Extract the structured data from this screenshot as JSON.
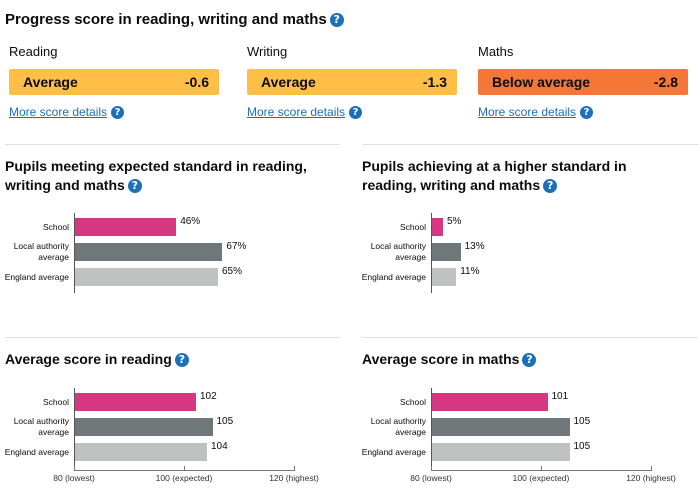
{
  "progress": {
    "title": "Progress score in reading, writing and maths",
    "help_icon": "question-circle-icon",
    "items": [
      {
        "subject": "Reading",
        "band": "Average",
        "score": "-0.6",
        "color": "#ffbf47",
        "link": "More score details"
      },
      {
        "subject": "Writing",
        "band": "Average",
        "score": "-1.3",
        "color": "#ffbf47",
        "link": "More score details"
      },
      {
        "subject": "Maths",
        "band": "Below average",
        "score": "-2.8",
        "color": "#f47738",
        "link": "More score details"
      }
    ]
  },
  "colors": {
    "school": "#d53880",
    "local_authority": "#6f777b",
    "england": "#bfc1c3",
    "link": "#1d70b8"
  },
  "chart_data": [
    {
      "type": "bar",
      "title": "Pupils meeting expected standard in reading, writing and maths",
      "categories": [
        "School",
        "Local authority average",
        "England average"
      ],
      "values": [
        46,
        67,
        65
      ],
      "value_labels": [
        "46%",
        "67%",
        "65%"
      ],
      "unit": "%",
      "xlim": [
        0,
        100
      ]
    },
    {
      "type": "bar",
      "title": "Pupils achieving at a higher standard in reading, writing and maths",
      "categories": [
        "School",
        "Local authority average",
        "England average"
      ],
      "values": [
        5,
        13,
        11
      ],
      "value_labels": [
        "5%",
        "13%",
        "11%"
      ],
      "unit": "%",
      "xlim": [
        0,
        100
      ]
    },
    {
      "type": "bar",
      "title": "Average score in reading",
      "categories": [
        "School",
        "Local authority average",
        "England average"
      ],
      "values": [
        102,
        105,
        104
      ],
      "value_labels": [
        "102",
        "105",
        "104"
      ],
      "xlim": [
        80,
        120
      ],
      "xticks": [
        "80 (lowest)",
        "100 (expected)",
        "120 (highest)"
      ]
    },
    {
      "type": "bar",
      "title": "Average score in maths",
      "categories": [
        "School",
        "Local authority average",
        "England average"
      ],
      "values": [
        101,
        105,
        105
      ],
      "value_labels": [
        "101",
        "105",
        "105"
      ],
      "xlim": [
        80,
        120
      ],
      "xticks": [
        "80 (lowest)",
        "100 (expected)",
        "120 (highest)"
      ]
    }
  ],
  "category_display": [
    "School",
    "Local authority\naverage",
    "England average"
  ]
}
